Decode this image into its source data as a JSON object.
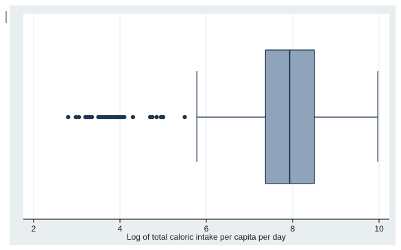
{
  "chart_data": {
    "type": "box",
    "xlabel": "Log of total caloric intake per capita per day",
    "xlim": [
      1.8,
      10.2
    ],
    "x_ticks": [
      2,
      4,
      6,
      8,
      10
    ],
    "grid": true,
    "box": {
      "whisker_low": 5.78,
      "q1": 7.37,
      "median": 7.93,
      "q3": 8.5,
      "whisker_high": 9.97
    },
    "outliers": [
      2.8,
      2.98,
      3.05,
      3.2,
      3.25,
      3.3,
      3.35,
      3.5,
      3.55,
      3.6,
      3.65,
      3.7,
      3.75,
      3.8,
      3.85,
      3.9,
      3.95,
      4.0,
      4.05,
      4.1,
      4.3,
      4.7,
      4.75,
      4.85,
      4.95,
      5.0,
      5.5
    ],
    "colors": {
      "page_bg": "#e9eef1",
      "plot_bg": "#ffffff",
      "box_fill": "#8fa4ba",
      "box_stroke": "#1e3550",
      "grid": "#e6ebee",
      "outlier": "#1e3550"
    }
  }
}
